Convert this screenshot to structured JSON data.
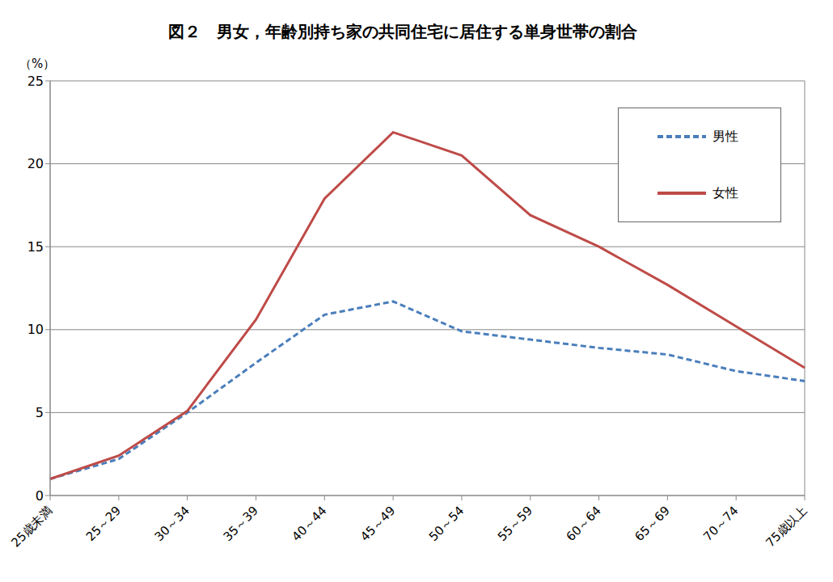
{
  "chart_data": {
    "type": "line",
    "title": "図２　男女，年齢別持ち家の共同住宅に居住する単身世帯の割合",
    "y_label": "（%）",
    "categories": [
      "25歳未満",
      "25～29",
      "30～34",
      "35～39",
      "40～44",
      "45～49",
      "50～54",
      "55～59",
      "60～64",
      "65～69",
      "70～74",
      "75歳以上"
    ],
    "series": [
      {
        "name": "男性",
        "color": "#4a7ebb",
        "line_style": "dashed",
        "values": [
          1.0,
          2.2,
          5.0,
          8.0,
          10.9,
          11.7,
          9.9,
          9.4,
          8.9,
          8.5,
          7.5,
          6.9
        ]
      },
      {
        "name": "女性",
        "color": "#be4b48",
        "line_style": "solid",
        "values": [
          1.0,
          2.4,
          5.1,
          10.6,
          17.9,
          21.9,
          20.5,
          16.9,
          15.0,
          12.7,
          10.2,
          7.7
        ]
      }
    ],
    "ylim": [
      0,
      25
    ],
    "yticks": [
      0,
      5,
      10,
      15,
      20,
      25
    ],
    "grid": true,
    "legend": "top-right"
  }
}
